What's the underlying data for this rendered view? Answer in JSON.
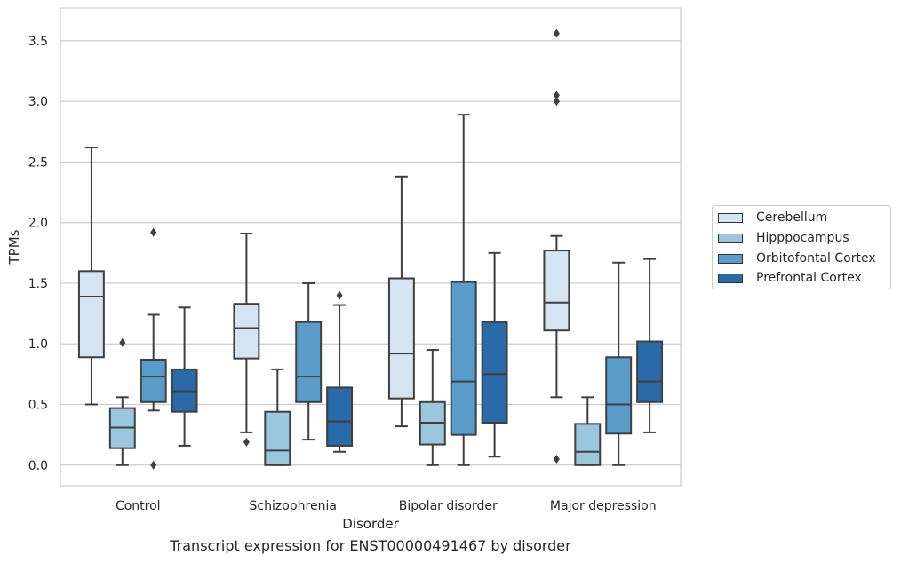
{
  "chart_data": {
    "type": "box",
    "title": "",
    "caption": "Transcript expression for ENST00000491467 by disorder",
    "xlabel": "Disorder",
    "ylabel": "TPMs",
    "ylim": [
      -0.17,
      3.77
    ],
    "yticks": [
      "0.0",
      "0.5",
      "1.0",
      "1.5",
      "2.0",
      "2.5",
      "3.0",
      "3.5"
    ],
    "grid": true,
    "legend_position": "right",
    "categories": [
      "Control",
      "Schizophrenia",
      "Bipolar disorder",
      "Major depression"
    ],
    "series": [
      {
        "name": "Cerebellum",
        "color": "#d5e4f1",
        "boxes": [
          {
            "whisker_low": 0.5,
            "q1": 0.89,
            "median": 1.39,
            "q3": 1.6,
            "whisker_high": 2.62,
            "outliers": []
          },
          {
            "whisker_low": 0.27,
            "q1": 0.88,
            "median": 1.13,
            "q3": 1.33,
            "whisker_high": 1.91,
            "outliers": [
              0.19
            ]
          },
          {
            "whisker_low": 0.32,
            "q1": 0.55,
            "median": 0.92,
            "q3": 1.54,
            "whisker_high": 2.38,
            "outliers": []
          },
          {
            "whisker_low": 0.56,
            "q1": 1.11,
            "median": 1.34,
            "q3": 1.77,
            "whisker_high": 1.89,
            "outliers": [
              3.56,
              3.05,
              3.0,
              0.05
            ]
          }
        ]
      },
      {
        "name": "Hipppocampus",
        "color": "#9ac6de",
        "boxes": [
          {
            "whisker_low": 0.0,
            "q1": 0.14,
            "median": 0.31,
            "q3": 0.47,
            "whisker_high": 0.56,
            "outliers": [
              1.01
            ]
          },
          {
            "whisker_low": 0.0,
            "q1": 0.0,
            "median": 0.12,
            "q3": 0.44,
            "whisker_high": 0.79,
            "outliers": []
          },
          {
            "whisker_low": 0.0,
            "q1": 0.17,
            "median": 0.35,
            "q3": 0.52,
            "whisker_high": 0.95,
            "outliers": []
          },
          {
            "whisker_low": 0.0,
            "q1": 0.0,
            "median": 0.11,
            "q3": 0.34,
            "whisker_high": 0.56,
            "outliers": []
          }
        ]
      },
      {
        "name": "Orbitofontal Cortex",
        "color": "#5a9cc9",
        "boxes": [
          {
            "whisker_low": 0.45,
            "q1": 0.52,
            "median": 0.73,
            "q3": 0.87,
            "whisker_high": 1.24,
            "outliers": [
              1.92,
              0.0
            ]
          },
          {
            "whisker_low": 0.21,
            "q1": 0.52,
            "median": 0.73,
            "q3": 1.18,
            "whisker_high": 1.5,
            "outliers": []
          },
          {
            "whisker_low": 0.0,
            "q1": 0.25,
            "median": 0.69,
            "q3": 1.51,
            "whisker_high": 2.89,
            "outliers": []
          },
          {
            "whisker_low": 0.0,
            "q1": 0.26,
            "median": 0.5,
            "q3": 0.89,
            "whisker_high": 1.67,
            "outliers": []
          }
        ]
      },
      {
        "name": "Prefrontal Cortex",
        "color": "#2a6aa8",
        "boxes": [
          {
            "whisker_low": 0.16,
            "q1": 0.44,
            "median": 0.61,
            "q3": 0.79,
            "whisker_high": 1.3,
            "outliers": []
          },
          {
            "whisker_low": 0.11,
            "q1": 0.16,
            "median": 0.36,
            "q3": 0.64,
            "whisker_high": 1.32,
            "outliers": [
              1.4
            ]
          },
          {
            "whisker_low": 0.07,
            "q1": 0.35,
            "median": 0.75,
            "q3": 1.18,
            "whisker_high": 1.75,
            "outliers": []
          },
          {
            "whisker_low": 0.27,
            "q1": 0.52,
            "median": 0.69,
            "q3": 1.02,
            "whisker_high": 1.7,
            "outliers": []
          }
        ]
      }
    ]
  }
}
